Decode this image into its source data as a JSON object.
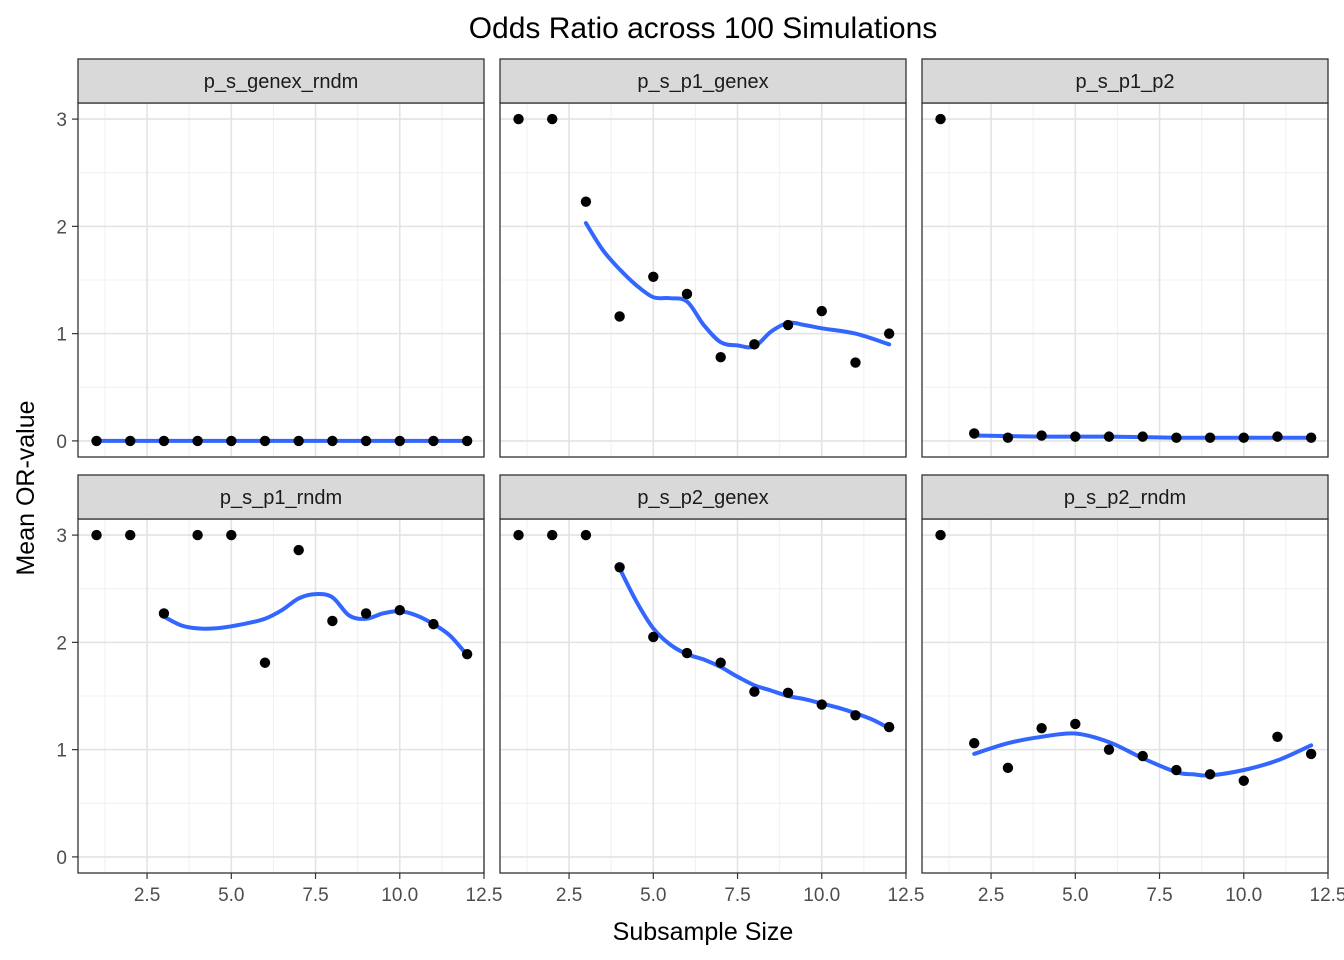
{
  "chart_data": {
    "type": "scatter",
    "title": "Odds Ratio across 100 Simulations",
    "xlabel": "Subsample Size",
    "ylabel": "Mean OR-value",
    "xlim": [
      0.45,
      12.5
    ],
    "ylim": [
      -0.15,
      3.15
    ],
    "x_ticks": [
      2.5,
      5.0,
      7.5,
      10.0,
      12.5
    ],
    "x_tick_labels": [
      "2.5",
      "5.0",
      "7.5",
      "10.0",
      "12.5"
    ],
    "y_ticks": [
      0,
      1,
      2,
      3
    ],
    "y_tick_labels": [
      "0",
      "1",
      "2",
      "3"
    ],
    "grid": true,
    "smooth_color": "#3366FF",
    "point_color": "#000000",
    "panels": [
      {
        "name": "p_s_genex_rndm",
        "points": [
          [
            1,
            0
          ],
          [
            2,
            0
          ],
          [
            3,
            0
          ],
          [
            4,
            0
          ],
          [
            5,
            0
          ],
          [
            6,
            0
          ],
          [
            7,
            0
          ],
          [
            8,
            0
          ],
          [
            9,
            0
          ],
          [
            10,
            0
          ],
          [
            11,
            0
          ],
          [
            12,
            0
          ]
        ],
        "smooth": [
          [
            1,
            0
          ],
          [
            12,
            0
          ]
        ]
      },
      {
        "name": "p_s_p1_genex",
        "points": [
          [
            1,
            3
          ],
          [
            2,
            3
          ],
          [
            3,
            2.23
          ],
          [
            4,
            1.16
          ],
          [
            5,
            1.53
          ],
          [
            6,
            1.37
          ],
          [
            7,
            0.78
          ],
          [
            8,
            0.9
          ],
          [
            9,
            1.08
          ],
          [
            10,
            1.21
          ],
          [
            11,
            0.73
          ],
          [
            12,
            1.0
          ]
        ],
        "smooth": [
          [
            3,
            2.03
          ],
          [
            3.5,
            1.78
          ],
          [
            4,
            1.6
          ],
          [
            4.5,
            1.45
          ],
          [
            5,
            1.34
          ],
          [
            5.5,
            1.33
          ],
          [
            6,
            1.3
          ],
          [
            6.5,
            1.08
          ],
          [
            7,
            0.92
          ],
          [
            7.5,
            0.89
          ],
          [
            8,
            0.88
          ],
          [
            8.5,
            1.02
          ],
          [
            9,
            1.1
          ],
          [
            9.5,
            1.08
          ],
          [
            10,
            1.05
          ],
          [
            11,
            1.0
          ],
          [
            12,
            0.9
          ]
        ]
      },
      {
        "name": "p_s_p1_p2",
        "points": [
          [
            1,
            3
          ],
          [
            2,
            0.07
          ],
          [
            3,
            0.03
          ],
          [
            4,
            0.05
          ],
          [
            5,
            0.04
          ],
          [
            6,
            0.04
          ],
          [
            7,
            0.04
          ],
          [
            8,
            0.03
          ],
          [
            9,
            0.03
          ],
          [
            10,
            0.03
          ],
          [
            11,
            0.04
          ],
          [
            12,
            0.03
          ]
        ],
        "smooth": [
          [
            2,
            0.05
          ],
          [
            4,
            0.04
          ],
          [
            6,
            0.04
          ],
          [
            8,
            0.03
          ],
          [
            10,
            0.03
          ],
          [
            12,
            0.03
          ]
        ]
      },
      {
        "name": "p_s_p1_rndm",
        "points": [
          [
            1,
            3
          ],
          [
            2,
            3
          ],
          [
            3,
            2.27
          ],
          [
            4,
            3
          ],
          [
            5,
            3
          ],
          [
            6,
            1.81
          ],
          [
            7,
            2.86
          ],
          [
            8,
            2.2
          ],
          [
            9,
            2.27
          ],
          [
            10,
            2.3
          ],
          [
            11,
            2.17
          ],
          [
            12,
            1.89
          ]
        ],
        "smooth": [
          [
            3,
            2.24
          ],
          [
            3.5,
            2.16
          ],
          [
            4,
            2.13
          ],
          [
            4.5,
            2.13
          ],
          [
            5,
            2.15
          ],
          [
            5.5,
            2.18
          ],
          [
            6,
            2.22
          ],
          [
            6.5,
            2.3
          ],
          [
            7,
            2.41
          ],
          [
            7.5,
            2.45
          ],
          [
            8,
            2.42
          ],
          [
            8.5,
            2.25
          ],
          [
            9,
            2.22
          ],
          [
            9.5,
            2.27
          ],
          [
            10,
            2.29
          ],
          [
            10.5,
            2.25
          ],
          [
            11,
            2.17
          ],
          [
            11.5,
            2.06
          ],
          [
            12,
            1.88
          ]
        ]
      },
      {
        "name": "p_s_p2_genex",
        "points": [
          [
            1,
            3
          ],
          [
            2,
            3
          ],
          [
            3,
            3
          ],
          [
            4,
            2.7
          ],
          [
            5,
            2.05
          ],
          [
            6,
            1.9
          ],
          [
            7,
            1.81
          ],
          [
            8,
            1.54
          ],
          [
            9,
            1.53
          ],
          [
            10,
            1.42
          ],
          [
            11,
            1.32
          ],
          [
            12,
            1.21
          ]
        ],
        "smooth": [
          [
            4,
            2.69
          ],
          [
            4.5,
            2.38
          ],
          [
            5,
            2.13
          ],
          [
            5.5,
            1.98
          ],
          [
            6,
            1.89
          ],
          [
            6.5,
            1.84
          ],
          [
            7,
            1.77
          ],
          [
            7.5,
            1.68
          ],
          [
            8,
            1.6
          ],
          [
            8.5,
            1.55
          ],
          [
            9,
            1.5
          ],
          [
            9.5,
            1.47
          ],
          [
            10,
            1.43
          ],
          [
            10.5,
            1.39
          ],
          [
            11,
            1.34
          ],
          [
            11.5,
            1.28
          ],
          [
            12,
            1.2
          ]
        ]
      },
      {
        "name": "p_s_p2_rndm",
        "points": [
          [
            1,
            3
          ],
          [
            2,
            1.06
          ],
          [
            3,
            0.83
          ],
          [
            4,
            1.2
          ],
          [
            5,
            1.24
          ],
          [
            6,
            1.0
          ],
          [
            7,
            0.94
          ],
          [
            8,
            0.81
          ],
          [
            9,
            0.77
          ],
          [
            10,
            0.71
          ],
          [
            11,
            1.12
          ],
          [
            12,
            0.96
          ]
        ],
        "smooth": [
          [
            2,
            0.96
          ],
          [
            3,
            1.06
          ],
          [
            4,
            1.12
          ],
          [
            5,
            1.15
          ],
          [
            6,
            1.07
          ],
          [
            7,
            0.92
          ],
          [
            8,
            0.79
          ],
          [
            8.5,
            0.77
          ],
          [
            9,
            0.76
          ],
          [
            10,
            0.81
          ],
          [
            11,
            0.9
          ],
          [
            12,
            1.04
          ]
        ]
      }
    ]
  }
}
